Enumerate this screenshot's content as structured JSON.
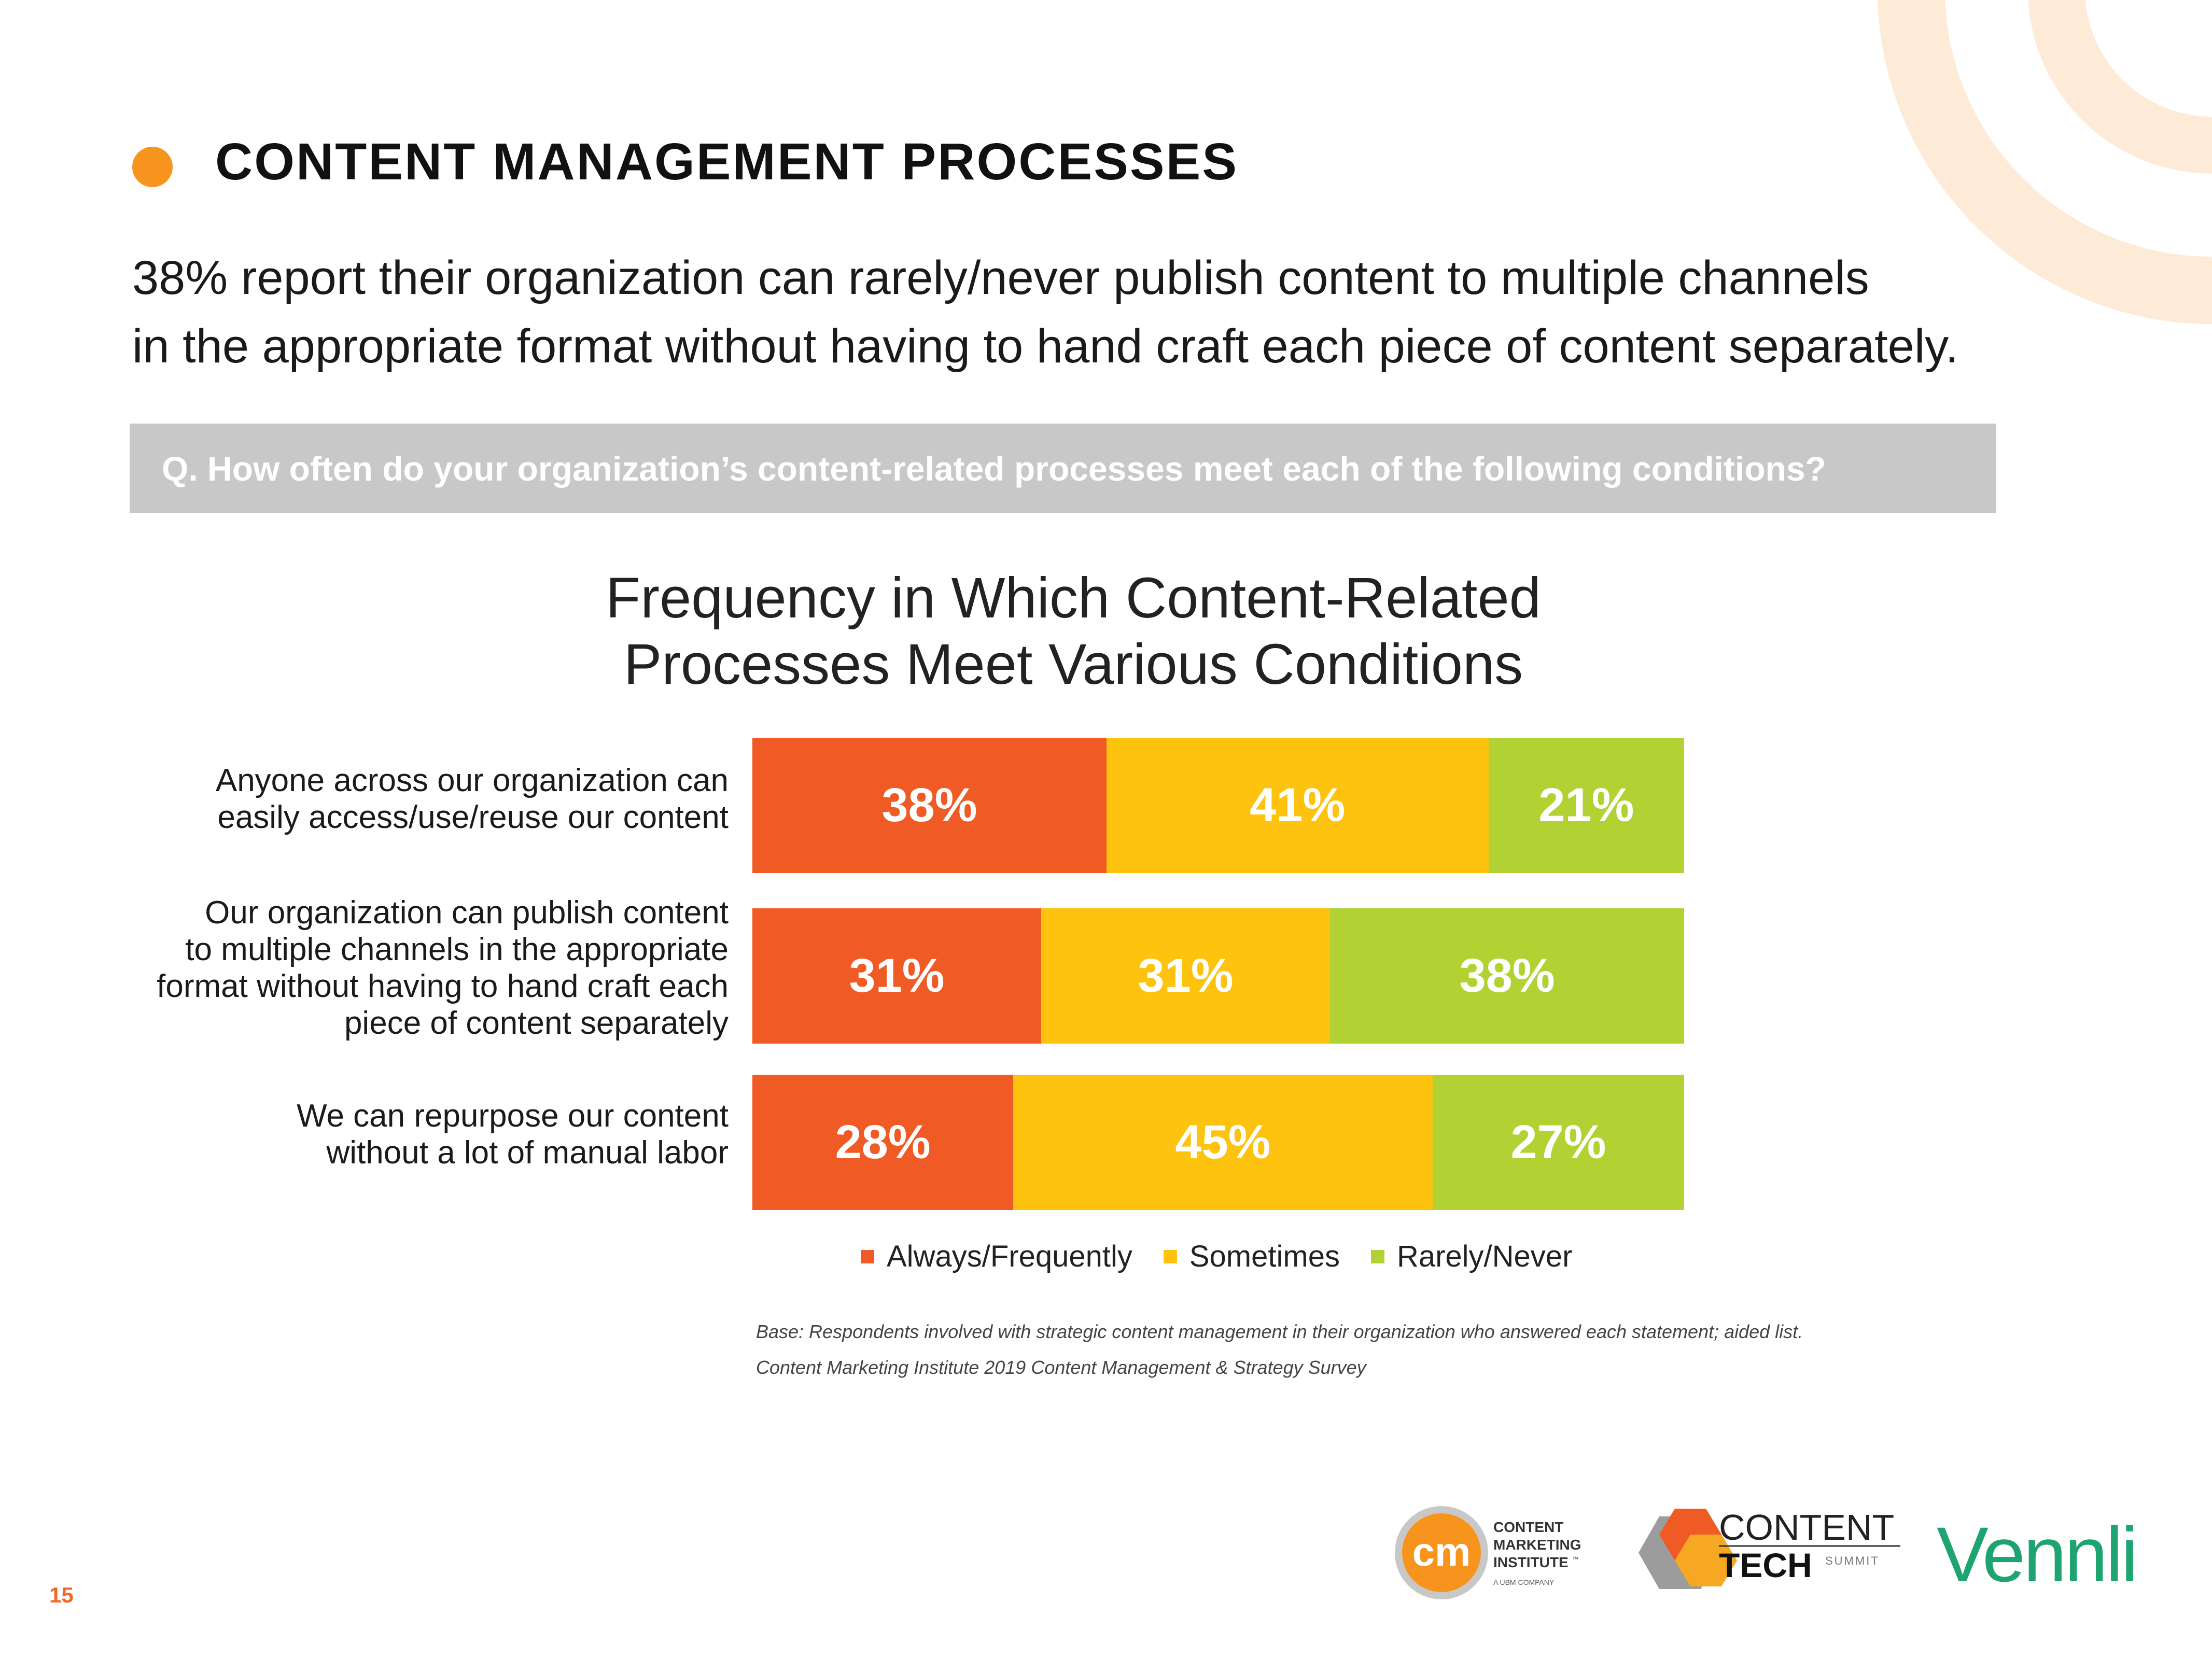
{
  "page": {
    "section_title": "CONTENT MANAGEMENT PROCESSES",
    "headline_line1": "38% report their organization can rarely/never publish content to multiple channels",
    "headline_line2": "in the appropriate format without having to hand craft each piece of content separately.",
    "question": "Q. How often do your organization’s content-related processes meet each of the following conditions?",
    "page_number": "15",
    "footnote_base": "Base: Respondents involved with strategic content management in their organization who answered each statement; aided list.",
    "footnote_source": "Content Marketing Institute 2019 Content Management & Strategy Survey"
  },
  "logos": {
    "cmi_badge": "cm",
    "cmi_line1": "CONTENT",
    "cmi_line2": "MARKETING",
    "cmi_line3": "INSTITUTE",
    "cmi_tm": "™",
    "cmi_sub": "A UBM COMPANY",
    "cts_line1": "CONTENT",
    "cts_line2": "TECH",
    "cts_line3": "SUMMIT",
    "vennli": "Vennli"
  },
  "colors": {
    "always": "#f05a24",
    "sometimes": "#fdc30f",
    "rarely": "#b2d234",
    "accent": "#f7941d",
    "question_bg": "#c8c8c8"
  },
  "chart_data": {
    "type": "bar",
    "orientation": "horizontal",
    "stacked": true,
    "percent": true,
    "title_line1": "Frequency in Which Content-Related",
    "title_line2": "Processes Meet Various Conditions",
    "categories": [
      [
        "Anyone across our organization can",
        "easily access/use/reuse our content"
      ],
      [
        "Our organization can publish content",
        "to multiple channels in the appropriate",
        "format without having to hand craft each",
        "piece of content separately"
      ],
      [
        "We can repurpose our content",
        "without a lot of manual labor"
      ]
    ],
    "series": [
      {
        "name": "Always/Frequently",
        "values": [
          38,
          31,
          28
        ],
        "labels": [
          "38%",
          "31%",
          "28%"
        ],
        "color": "#f05a24"
      },
      {
        "name": "Sometimes",
        "values": [
          41,
          31,
          45
        ],
        "labels": [
          "41%",
          "31%",
          "45%"
        ],
        "color": "#fdc30f"
      },
      {
        "name": "Rarely/Never",
        "values": [
          21,
          38,
          27
        ],
        "labels": [
          "21%",
          "38%",
          "27%"
        ],
        "color": "#b2d234"
      }
    ],
    "xlim": [
      0,
      100
    ],
    "legend_position": "bottom",
    "grid": false
  }
}
